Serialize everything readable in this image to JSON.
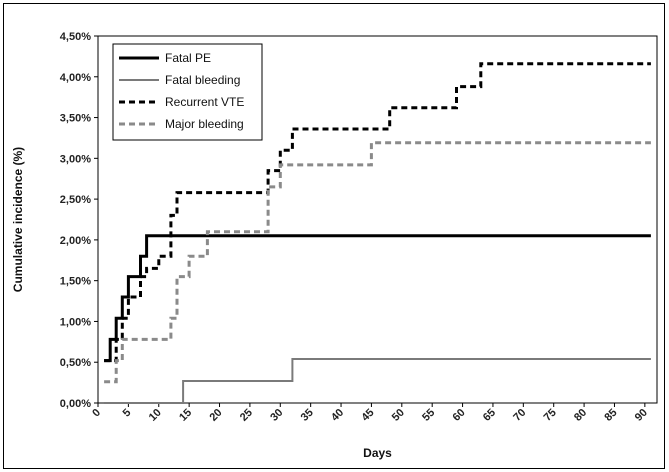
{
  "chart_data": {
    "type": "line",
    "title": "",
    "xlabel": "Days",
    "ylabel": "Cumulative incidence (%)",
    "xlim": [
      0,
      92
    ],
    "ylim": [
      0,
      4.5
    ],
    "x_ticks": [
      "0",
      "5",
      "10",
      "15",
      "20",
      "25",
      "30",
      "35",
      "40",
      "45",
      "50",
      "55",
      "60",
      "65",
      "70",
      "75",
      "80",
      "85",
      "90"
    ],
    "y_ticks": [
      "0,00%",
      "0,50%",
      "1,00%",
      "1,50%",
      "2,00%",
      "2,50%",
      "3,00%",
      "3,50%",
      "4,00%",
      "4,50%"
    ],
    "grid": false,
    "legend_position": "top-left",
    "series": [
      {
        "name": "Fatal PE",
        "color": "#000000",
        "style": "solid",
        "points": [
          [
            1,
            0.52
          ],
          [
            2,
            0.52
          ],
          [
            2,
            0.78
          ],
          [
            3,
            0.78
          ],
          [
            3,
            1.04
          ],
          [
            4,
            1.04
          ],
          [
            4,
            1.3
          ],
          [
            5,
            1.3
          ],
          [
            5,
            1.55
          ],
          [
            7,
            1.55
          ],
          [
            7,
            1.8
          ],
          [
            8,
            1.8
          ],
          [
            8,
            2.05
          ],
          [
            91,
            2.05
          ]
        ]
      },
      {
        "name": "Fatal bleeding",
        "color": "#7a7a7a",
        "style": "solid",
        "points": [
          [
            1,
            0.0
          ],
          [
            14,
            0.0
          ],
          [
            14,
            0.27
          ],
          [
            32,
            0.27
          ],
          [
            32,
            0.54
          ],
          [
            91,
            0.54
          ]
        ]
      },
      {
        "name": "Recurrent VTE",
        "color": "#000000",
        "style": "dashed",
        "points": [
          [
            1,
            0.52
          ],
          [
            3,
            0.52
          ],
          [
            3,
            0.78
          ],
          [
            4,
            0.78
          ],
          [
            4,
            1.04
          ],
          [
            5,
            1.04
          ],
          [
            5,
            1.3
          ],
          [
            7,
            1.3
          ],
          [
            7,
            1.55
          ],
          [
            8,
            1.55
          ],
          [
            8,
            1.65
          ],
          [
            10,
            1.65
          ],
          [
            10,
            1.8
          ],
          [
            12,
            1.8
          ],
          [
            12,
            2.3
          ],
          [
            13,
            2.3
          ],
          [
            13,
            2.58
          ],
          [
            28,
            2.58
          ],
          [
            28,
            2.85
          ],
          [
            30,
            2.85
          ],
          [
            30,
            3.1
          ],
          [
            32,
            3.1
          ],
          [
            32,
            3.36
          ],
          [
            48,
            3.36
          ],
          [
            48,
            3.62
          ],
          [
            59,
            3.62
          ],
          [
            59,
            3.88
          ],
          [
            63,
            3.88
          ],
          [
            63,
            4.16
          ],
          [
            91,
            4.16
          ]
        ]
      },
      {
        "name": "Major bleeding",
        "color": "#8a8a8a",
        "style": "dashed",
        "points": [
          [
            1,
            0.26
          ],
          [
            3,
            0.26
          ],
          [
            3,
            0.52
          ],
          [
            4,
            0.52
          ],
          [
            4,
            0.78
          ],
          [
            12,
            0.78
          ],
          [
            12,
            1.04
          ],
          [
            13,
            1.04
          ],
          [
            13,
            1.55
          ],
          [
            15,
            1.55
          ],
          [
            15,
            1.8
          ],
          [
            18,
            1.8
          ],
          [
            18,
            2.1
          ],
          [
            28,
            2.1
          ],
          [
            28,
            2.65
          ],
          [
            30,
            2.65
          ],
          [
            30,
            2.92
          ],
          [
            45,
            2.92
          ],
          [
            45,
            3.19
          ],
          [
            91,
            3.19
          ]
        ]
      }
    ]
  }
}
